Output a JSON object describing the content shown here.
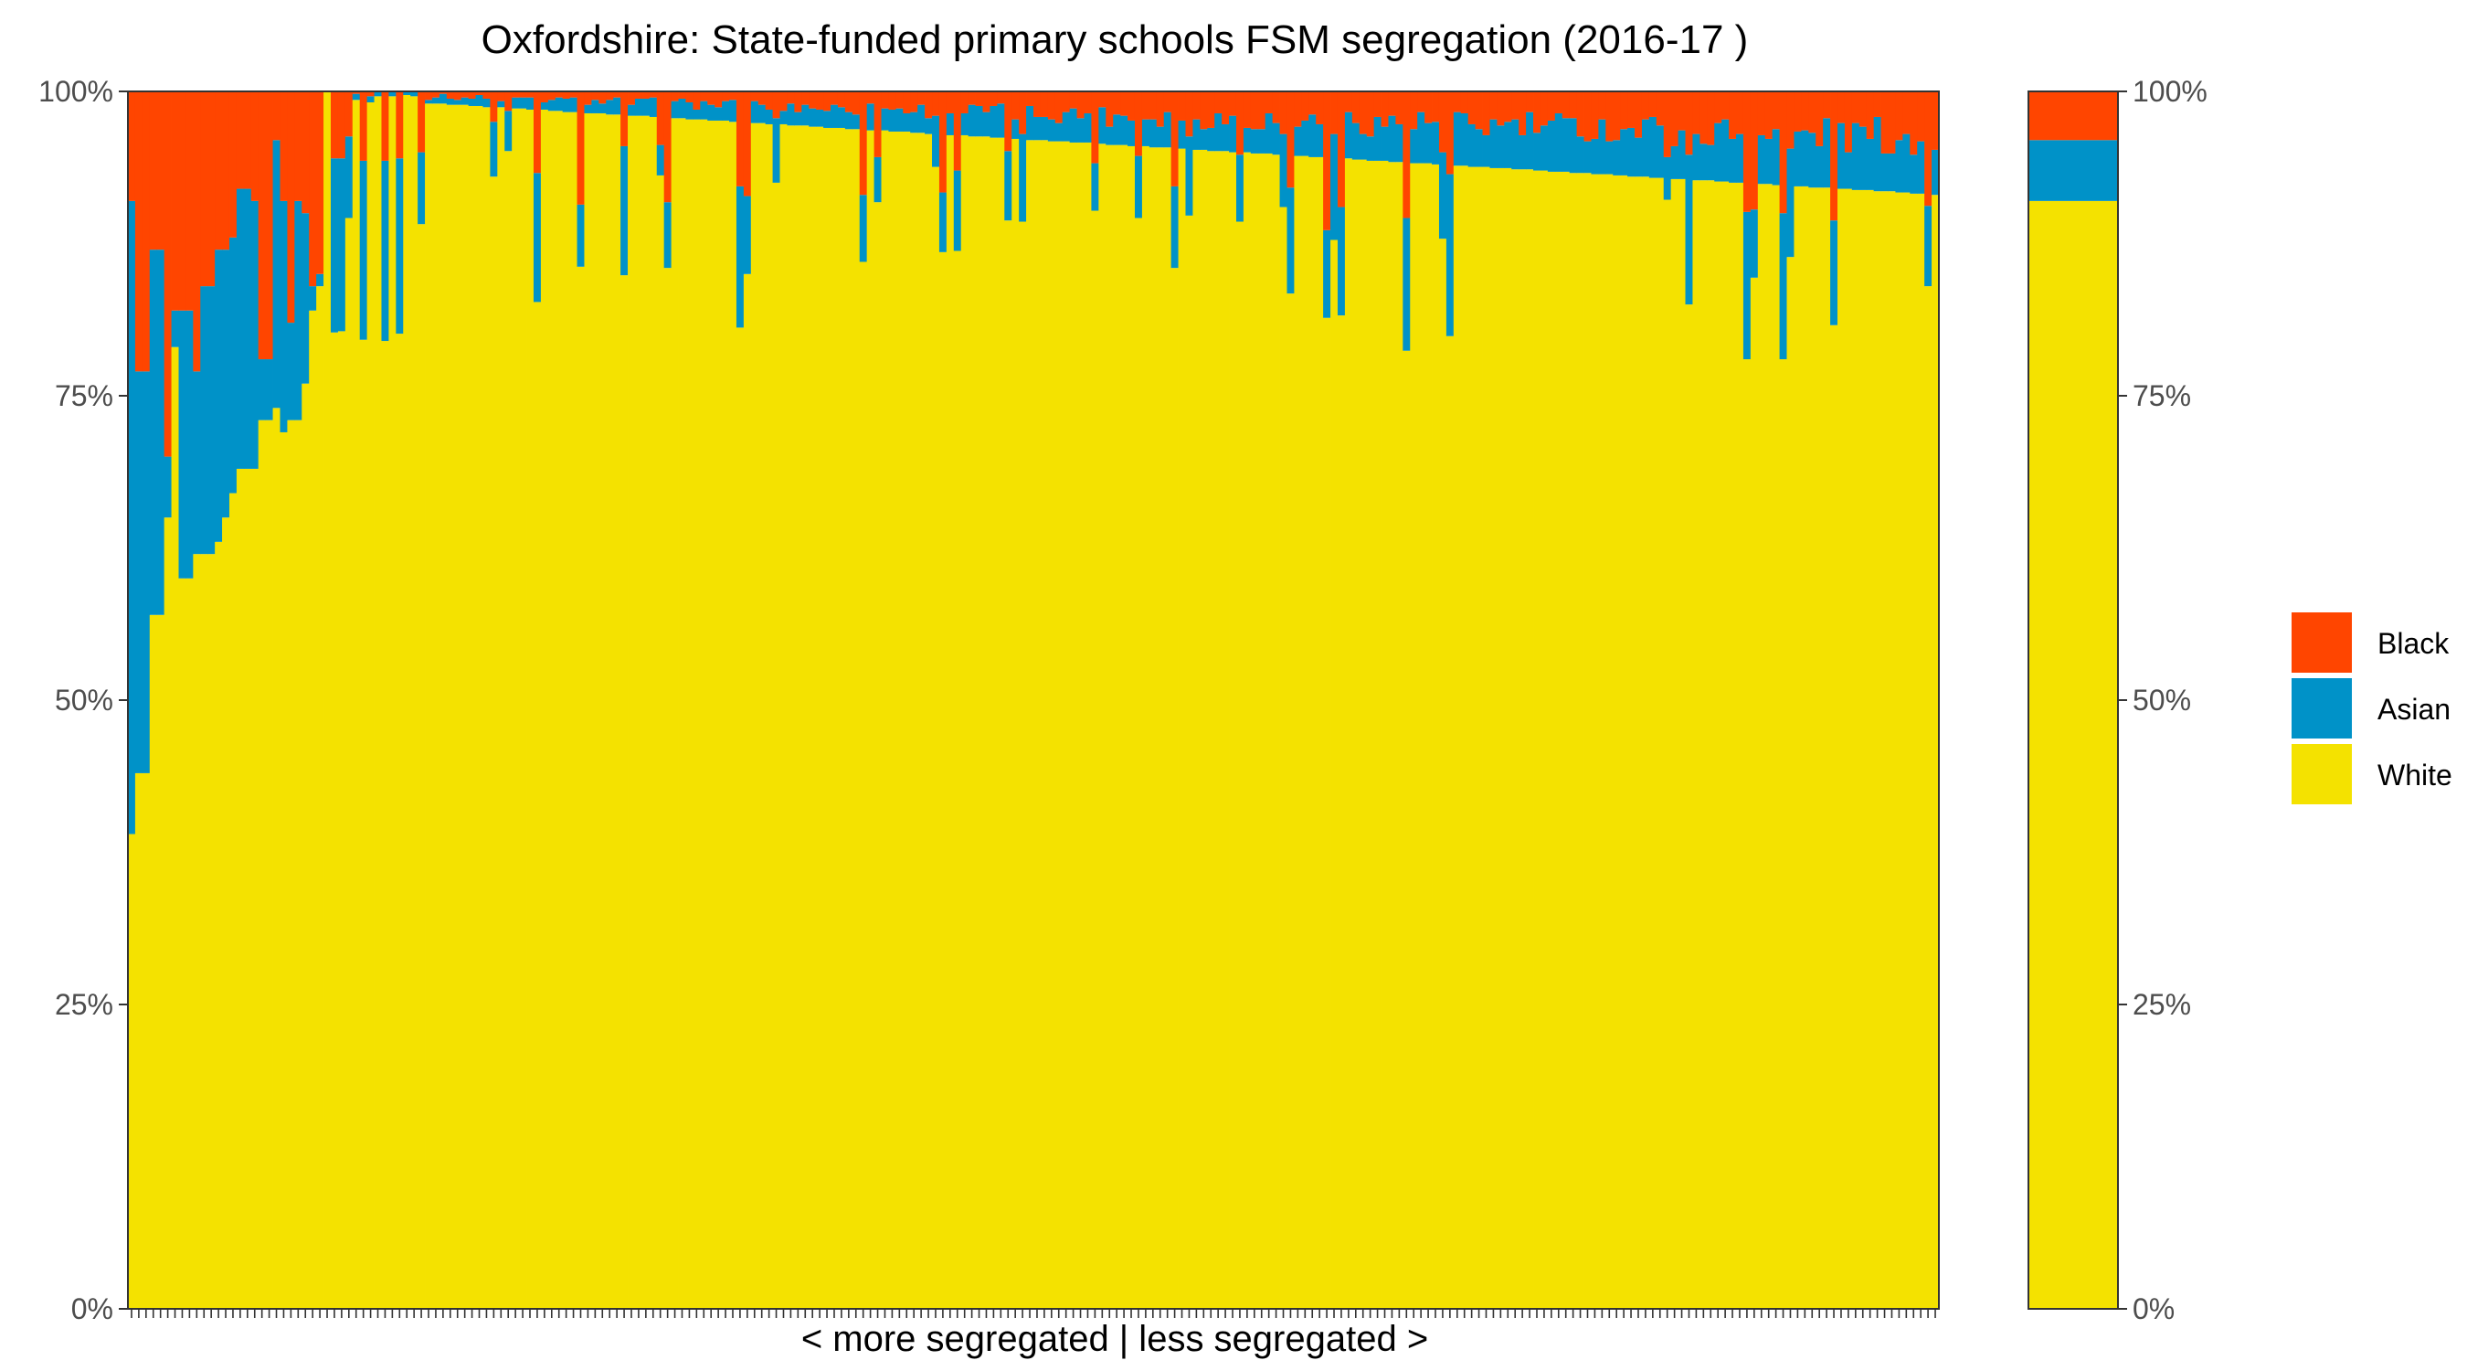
{
  "chart_data": {
    "type": "bar",
    "stacked": true,
    "title": "Oxfordshire: State-funded primary schools FSM segregation (2016-17 )",
    "xlabel": "< more segregated | less segregated >",
    "ylabel": "",
    "ylim": [
      0,
      100
    ],
    "yticks": [
      "0%",
      "25%",
      "50%",
      "75%",
      "100%"
    ],
    "school_count": 250,
    "legend": {
      "placement": "right",
      "entries": [
        {
          "name": "Black",
          "color": "#FF4500"
        },
        {
          "name": "Asian",
          "color": "#0092C8"
        },
        {
          "name": "White",
          "color": "#F4E200"
        }
      ]
    },
    "colors": {
      "Black": "#FF4500",
      "Asian": "#0092C8",
      "White": "#F4E200"
    },
    "schools_profile": [
      {
        "white": 39,
        "asian": 52,
        "black": 9
      },
      {
        "white": 44,
        "asian": 33,
        "black": 23
      },
      {
        "white": 44,
        "asian": 33,
        "black": 23
      },
      {
        "white": 57,
        "asian": 30,
        "black": 13
      },
      {
        "white": 57,
        "asian": 30,
        "black": 13
      },
      {
        "white": 65,
        "asian": 5,
        "black": 30
      },
      {
        "white": 79,
        "asian": 3,
        "black": 18
      },
      {
        "white": 60,
        "asian": 22,
        "black": 18
      },
      {
        "white": 60,
        "asian": 22,
        "black": 18
      },
      {
        "white": 62,
        "asian": 15,
        "black": 23
      },
      {
        "white": 62,
        "asian": 22,
        "black": 16
      },
      {
        "white": 62,
        "asian": 22,
        "black": 16
      },
      {
        "white": 63,
        "asian": 24,
        "black": 13
      },
      {
        "white": 65,
        "asian": 22,
        "black": 13
      },
      {
        "white": 67,
        "asian": 21,
        "black": 12
      },
      {
        "white": 69,
        "asian": 23,
        "black": 8
      },
      {
        "white": 69,
        "asian": 23,
        "black": 8
      },
      {
        "white": 69,
        "asian": 22,
        "black": 9
      },
      {
        "white": 73,
        "asian": 5,
        "black": 22
      },
      {
        "white": 73,
        "asian": 5,
        "black": 22
      },
      {
        "white": 74,
        "asian": 22,
        "black": 4
      },
      {
        "white": 72,
        "asian": 19,
        "black": 9
      },
      {
        "white": 73,
        "asian": 8,
        "black": 19
      },
      {
        "white": 73,
        "asian": 18,
        "black": 9
      },
      {
        "white": 76,
        "asian": 14,
        "black": 10
      },
      {
        "white": 82,
        "asian": 2,
        "black": 16
      },
      {
        "white": 84,
        "asian": 1,
        "black": 15
      },
      {
        "white": 100,
        "asian": 0,
        "black": 0
      }
    ],
    "summary_bar": {
      "white": 91,
      "asian": 5,
      "black": 4
    }
  }
}
